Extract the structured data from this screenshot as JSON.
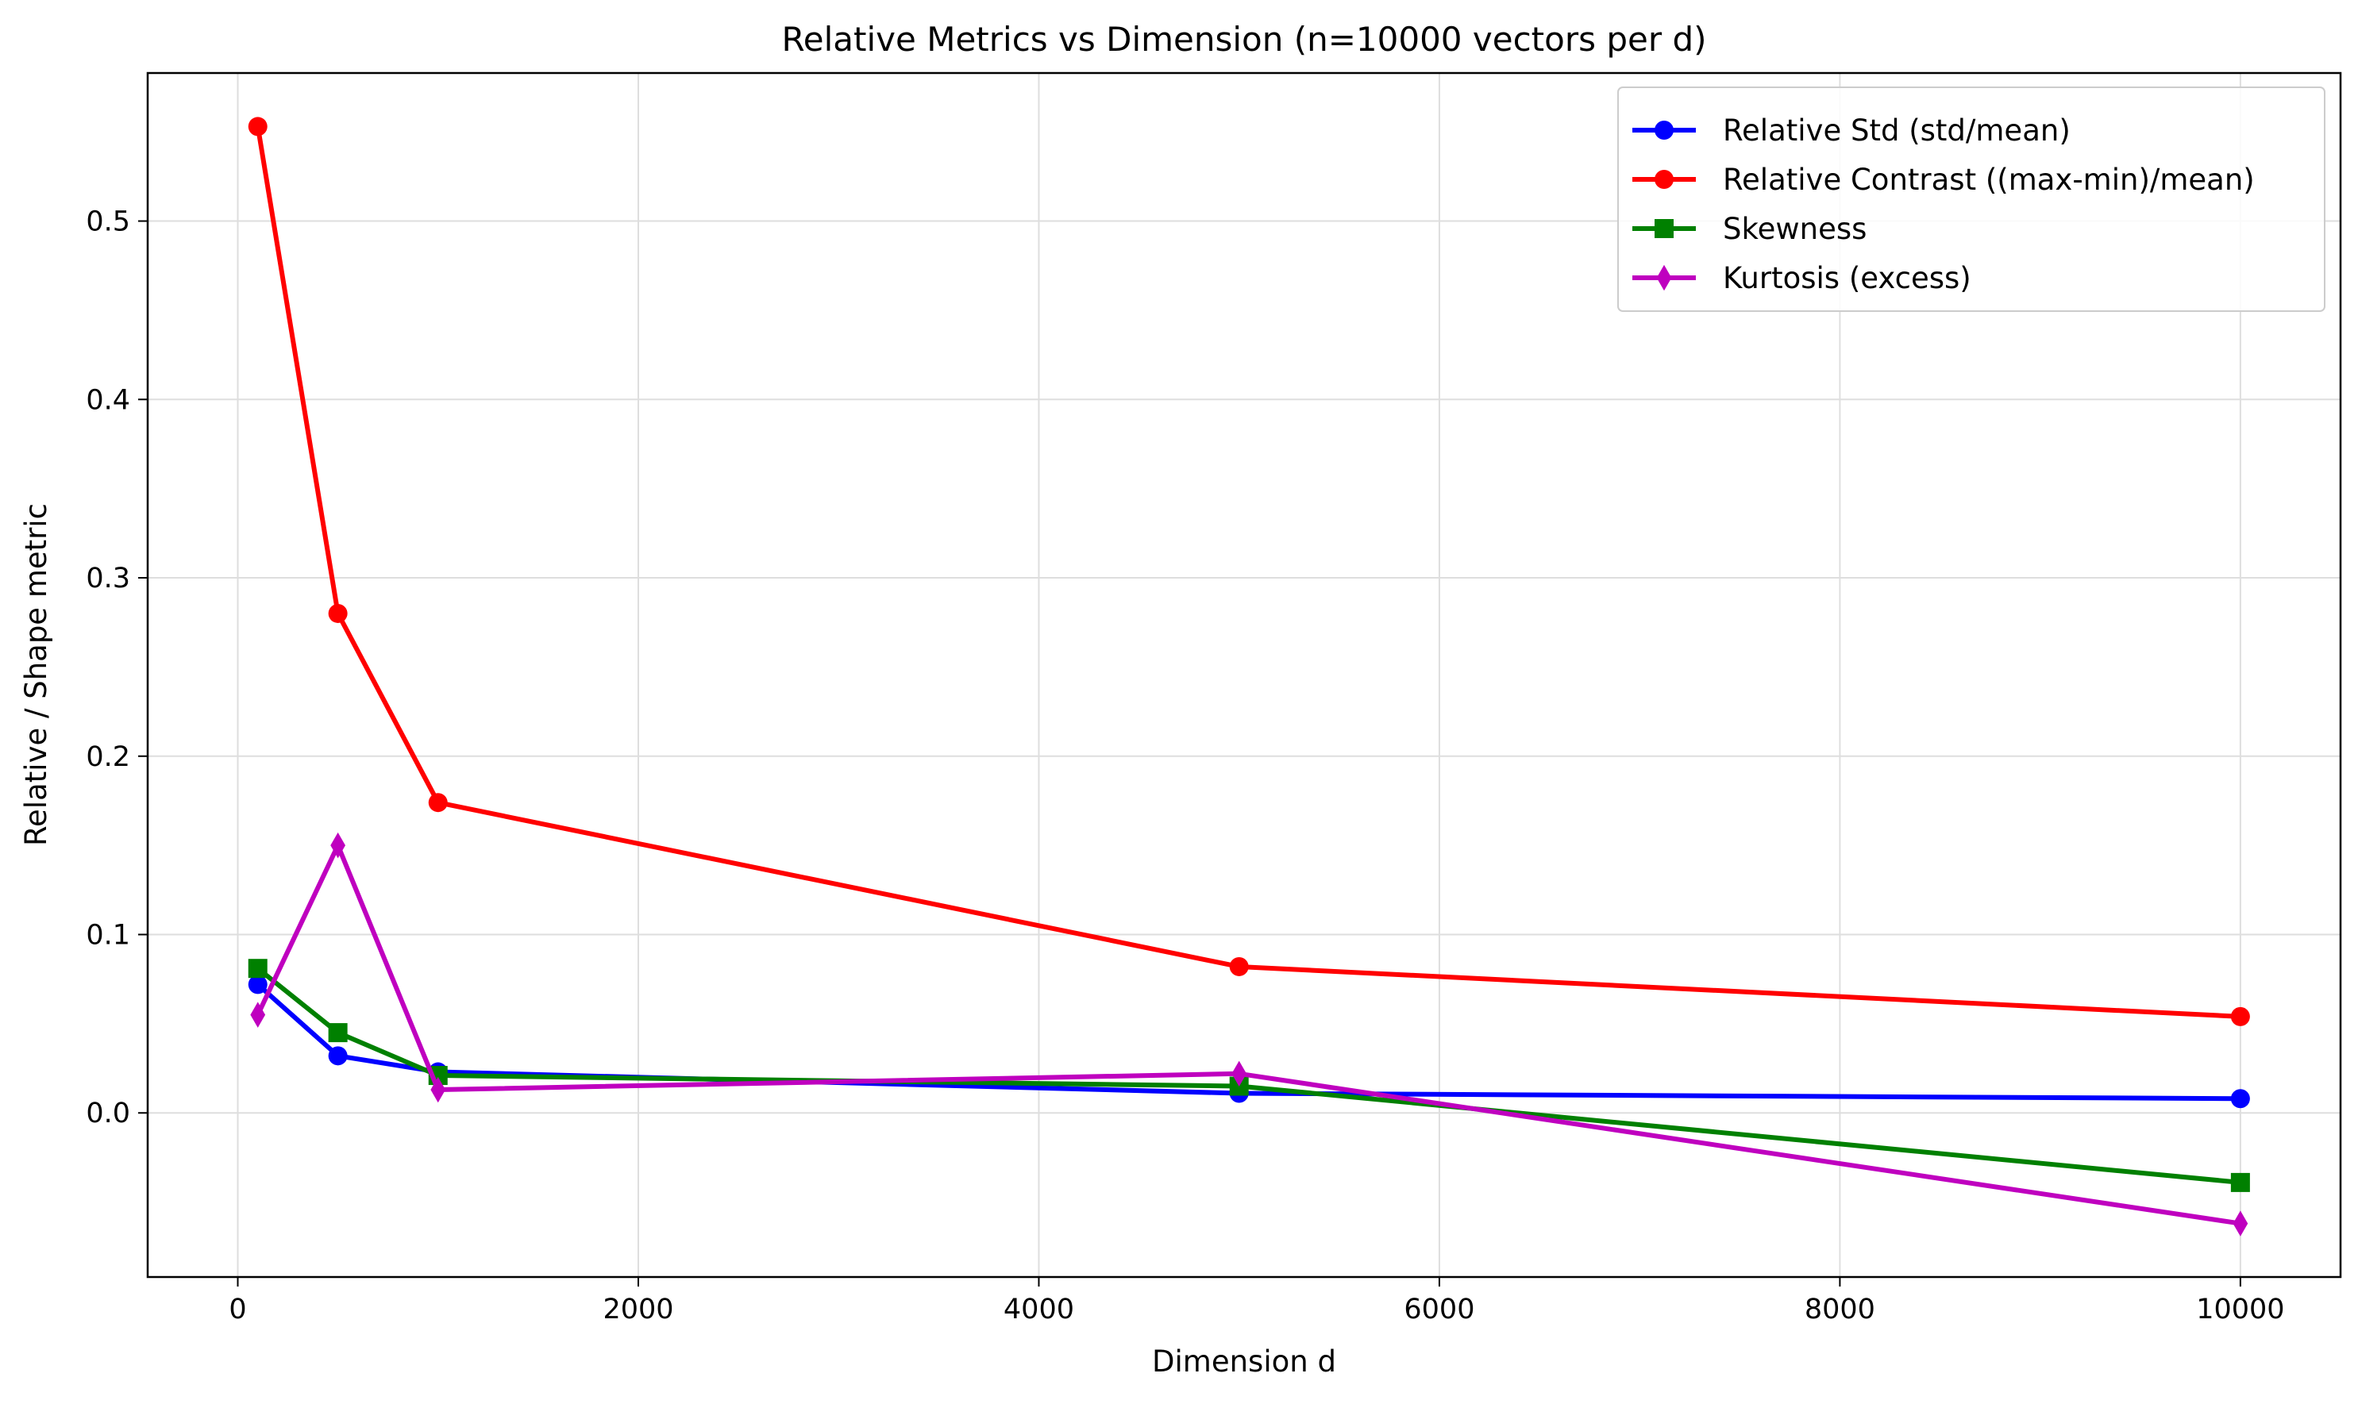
{
  "chart_data": {
    "type": "line",
    "title": "Relative Metrics vs Dimension (n=10000 vectors per d)",
    "xlabel": "Dimension d",
    "ylabel": "Relative / Shape metric",
    "x": [
      100,
      500,
      1000,
      5000,
      10000
    ],
    "xlim": [
      -450,
      10500
    ],
    "ylim": [
      -0.092,
      0.583
    ],
    "xticks": [
      0,
      2000,
      4000,
      6000,
      8000,
      10000
    ],
    "xtick_labels": [
      "0",
      "2000",
      "4000",
      "6000",
      "8000",
      "10000"
    ],
    "yticks": [
      0.0,
      0.1,
      0.2,
      0.3,
      0.4,
      0.5
    ],
    "ytick_labels": [
      "0.0",
      "0.1",
      "0.2",
      "0.3",
      "0.4",
      "0.5"
    ],
    "grid": true,
    "legend_position": "top-right",
    "series": [
      {
        "name": "Relative Std (std/mean)",
        "color": "#0000ff",
        "marker": "circle",
        "values": [
          0.072,
          0.032,
          0.023,
          0.011,
          0.008
        ]
      },
      {
        "name": "Relative Contrast ((max-min)/mean)",
        "color": "#ff0000",
        "marker": "circle",
        "values": [
          0.553,
          0.28,
          0.174,
          0.082,
          0.054
        ]
      },
      {
        "name": "Skewness",
        "color": "#008000",
        "marker": "square",
        "values": [
          0.081,
          0.045,
          0.021,
          0.015,
          -0.039
        ]
      },
      {
        "name": "Kurtosis (excess)",
        "color": "#bf00bf",
        "marker": "diamond",
        "values": [
          0.055,
          0.15,
          0.013,
          0.022,
          -0.062
        ]
      }
    ]
  }
}
